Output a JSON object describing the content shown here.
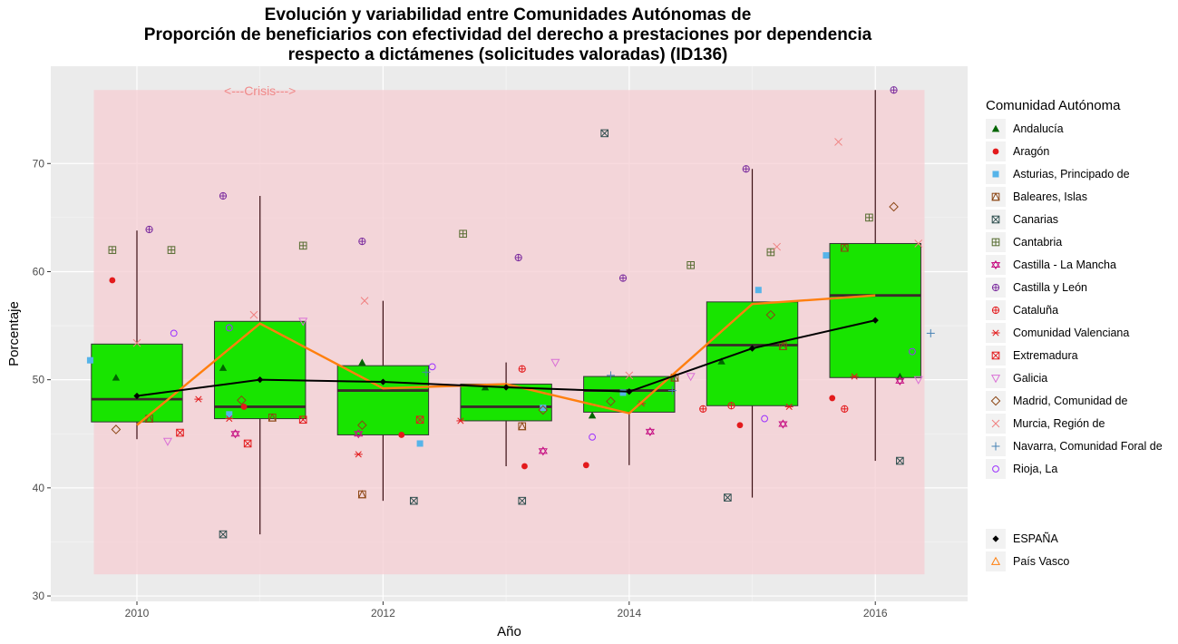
{
  "title_lines": [
    "Evolución y variabilidad entre Comunidades Autónomas de",
    "Proporción de beneficiarios con efectividad del derecho a prestaciones por dependencia",
    "respecto a dictámenes (solicitudes valoradas) (ID136)"
  ],
  "legend_title": "Comunidad Autónoma",
  "crisis_label": "<---Crisis--->",
  "colors": {
    "panel": "#ebebeb",
    "crisis_band": "#f6cdd3",
    "box_fill": "#18e400",
    "espana": "#000000",
    "pais_vasco": "#ff7f0e"
  },
  "chart_data": {
    "type": "box",
    "xlabel": "Año",
    "ylabel": "Porcentaje",
    "x_ticks": [
      2010,
      2012,
      2014,
      2016
    ],
    "y_ticks": [
      30,
      40,
      50,
      60,
      70
    ],
    "xlim": [
      2009.3,
      2016.75
    ],
    "ylim": [
      29.5,
      79
    ],
    "crisis_range": {
      "x": [
        2009.65,
        2016.4
      ],
      "y": [
        32,
        76.8
      ]
    },
    "boxes": [
      {
        "year": 2010,
        "whisker_low": 44.5,
        "q1": 46.1,
        "median": 48.2,
        "q3": 53.3,
        "whisker_high": 63.8
      },
      {
        "year": 2011,
        "whisker_low": 35.7,
        "q1": 46.4,
        "median": 47.5,
        "q3": 55.4,
        "whisker_high": 67.0
      },
      {
        "year": 2012,
        "whisker_low": 38.8,
        "q1": 44.9,
        "median": 49.0,
        "q3": 51.3,
        "whisker_high": 57.3
      },
      {
        "year": 2013,
        "whisker_low": 42.0,
        "q1": 46.2,
        "median": 47.5,
        "q3": 49.6,
        "whisker_high": 51.6
      },
      {
        "year": 2014,
        "whisker_low": 42.1,
        "q1": 47.0,
        "median": 49.0,
        "q3": 50.3,
        "whisker_high": 50.3
      },
      {
        "year": 2015,
        "whisker_low": 39.1,
        "q1": 47.6,
        "median": 53.2,
        "q3": 57.2,
        "whisker_high": 69.5
      },
      {
        "year": 2016,
        "whisker_low": 42.5,
        "q1": 50.2,
        "median": 57.8,
        "q3": 62.6,
        "whisker_high": 76.8
      }
    ],
    "series": [
      {
        "name": "ESPAÑA",
        "x": [
          2010,
          2011,
          2012,
          2013,
          2014,
          2015,
          2016
        ],
        "values": [
          48.5,
          50.0,
          49.8,
          49.3,
          48.9,
          52.9,
          55.5
        ]
      },
      {
        "name": "País Vasco",
        "x": [
          2010,
          2011,
          2012,
          2013,
          2014,
          2015,
          2016
        ],
        "values": [
          45.8,
          55.2,
          49.2,
          49.6,
          46.9,
          57.0,
          57.8
        ]
      }
    ],
    "ccaa": [
      {
        "name": "Andalucía",
        "shape": "triangle",
        "color": "#006400",
        "points": [
          [
            2009.83,
            50.2
          ],
          [
            2010.7,
            51.1
          ],
          [
            2011.83,
            51.6
          ],
          [
            2012.83,
            49.3
          ],
          [
            2013.7,
            46.7
          ],
          [
            2014.75,
            51.7
          ],
          [
            2016.2,
            50.3
          ]
        ]
      },
      {
        "name": "Aragón",
        "shape": "circle",
        "color": "#e31a1c",
        "points": [
          [
            2009.8,
            59.2
          ],
          [
            2010.87,
            47.5
          ],
          [
            2012.15,
            44.9
          ],
          [
            2013.15,
            42.0
          ],
          [
            2013.65,
            42.1
          ],
          [
            2014.9,
            45.8
          ],
          [
            2015.65,
            48.3
          ]
        ]
      },
      {
        "name": "Asturias, Principado de",
        "shape": "square",
        "color": "#56b4e9",
        "points": [
          [
            2009.62,
            51.8
          ],
          [
            2010.75,
            46.8
          ],
          [
            2012.3,
            44.1
          ],
          [
            2013.3,
            47.4
          ],
          [
            2013.95,
            48.8
          ],
          [
            2015.05,
            58.3
          ],
          [
            2015.6,
            61.5
          ]
        ]
      },
      {
        "name": "Baleares, Islas",
        "shape": "square-tri",
        "color": "#8b4513",
        "points": [
          [
            2010.1,
            46.4
          ],
          [
            2011.1,
            46.5
          ],
          [
            2011.83,
            39.4
          ],
          [
            2013.13,
            45.7
          ],
          [
            2014.37,
            50.2
          ],
          [
            2015.25,
            53.1
          ],
          [
            2015.75,
            62.2
          ]
        ]
      },
      {
        "name": "Canarias",
        "shape": "square-x",
        "color": "#2f4f4f",
        "points": [
          [
            2010.7,
            35.7
          ],
          [
            2012.25,
            38.8
          ],
          [
            2013.13,
            38.8
          ],
          [
            2013.8,
            72.8
          ],
          [
            2014.8,
            39.1
          ],
          [
            2016.2,
            42.5
          ]
        ]
      },
      {
        "name": "Cantabria",
        "shape": "square-plus",
        "color": "#556b2f",
        "points": [
          [
            2009.8,
            62.0
          ],
          [
            2010.28,
            62.0
          ],
          [
            2011.35,
            62.4
          ],
          [
            2012.65,
            63.5
          ],
          [
            2014.5,
            60.6
          ],
          [
            2015.15,
            61.8
          ],
          [
            2015.95,
            65.0
          ]
        ]
      },
      {
        "name": "Castilla - La Mancha",
        "shape": "star6",
        "color": "#c71585",
        "points": [
          [
            2010.8,
            45.0
          ],
          [
            2011.8,
            45.0
          ],
          [
            2013.3,
            43.4
          ],
          [
            2014.17,
            45.2
          ],
          [
            2015.25,
            45.9
          ],
          [
            2016.2,
            49.9
          ]
        ]
      },
      {
        "name": "Castilla y León",
        "shape": "circle-plus",
        "color": "#7b2c9e",
        "points": [
          [
            2010.1,
            63.9
          ],
          [
            2010.7,
            67.0
          ],
          [
            2011.83,
            62.8
          ],
          [
            2013.1,
            61.3
          ],
          [
            2013.95,
            59.4
          ],
          [
            2014.95,
            69.5
          ],
          [
            2016.15,
            76.8
          ]
        ]
      },
      {
        "name": "Cataluña",
        "shape": "circle-plus",
        "color": "#e31a1c",
        "points": [
          [
            2013.13,
            51.0
          ],
          [
            2014.6,
            47.3
          ],
          [
            2014.83,
            47.6
          ],
          [
            2015.75,
            47.3
          ]
        ]
      },
      {
        "name": "Comunidad Valenciana",
        "shape": "asterisk",
        "color": "#e31a1c",
        "points": [
          [
            2010.5,
            48.2
          ],
          [
            2010.75,
            46.4
          ],
          [
            2011.8,
            43.1
          ],
          [
            2012.63,
            46.2
          ],
          [
            2014.1,
            47.8
          ],
          [
            2015.3,
            47.5
          ],
          [
            2015.83,
            50.3
          ]
        ]
      },
      {
        "name": "Extremadura",
        "shape": "square-x",
        "color": "#e31a1c",
        "points": [
          [
            2010.35,
            45.1
          ],
          [
            2010.9,
            44.1
          ],
          [
            2011.35,
            46.3
          ],
          [
            2012.3,
            46.3
          ]
        ]
      },
      {
        "name": "Galicia",
        "shape": "triangle-down",
        "color": "#da70d6",
        "points": [
          [
            2010.25,
            44.3
          ],
          [
            2011.35,
            55.4
          ],
          [
            2013.4,
            51.6
          ],
          [
            2014.5,
            50.3
          ],
          [
            2016.35,
            50.0
          ]
        ]
      },
      {
        "name": "Madrid, Comunidad de",
        "shape": "diamond",
        "color": "#8b4513",
        "points": [
          [
            2009.83,
            45.4
          ],
          [
            2010.85,
            48.1
          ],
          [
            2011.83,
            45.8
          ],
          [
            2013.3,
            47.2
          ],
          [
            2013.85,
            48.0
          ],
          [
            2015.15,
            56.0
          ],
          [
            2016.15,
            66.0
          ]
        ]
      },
      {
        "name": "Murcia, Región de",
        "shape": "cross",
        "color": "#f08080",
        "points": [
          [
            2010.0,
            53.4
          ],
          [
            2010.95,
            56.0
          ],
          [
            2011.85,
            57.3
          ],
          [
            2014.0,
            50.4
          ],
          [
            2015.2,
            62.3
          ],
          [
            2015.7,
            72.0
          ],
          [
            2016.35,
            62.6
          ]
        ]
      },
      {
        "name": "Navarra, Comunidad Foral de",
        "shape": "plus",
        "color": "#4682b4",
        "points": [
          [
            2012.35,
            50.7
          ],
          [
            2013.85,
            50.4
          ],
          [
            2014.35,
            49.0
          ],
          [
            2016.45,
            54.3
          ]
        ]
      },
      {
        "name": "Rioja, La",
        "shape": "circle-open",
        "color": "#9b30ff",
        "points": [
          [
            2010.3,
            54.3
          ],
          [
            2010.75,
            54.8
          ],
          [
            2012.4,
            51.2
          ],
          [
            2013.7,
            44.7
          ],
          [
            2015.1,
            46.4
          ],
          [
            2016.3,
            52.6
          ]
        ]
      }
    ]
  },
  "legend_aggregates": [
    {
      "name": "ESPAÑA",
      "shape": "diamond-filled",
      "color": "#000000"
    },
    {
      "name": "País Vasco",
      "shape": "triangle-open",
      "color": "#ff7f0e"
    }
  ]
}
